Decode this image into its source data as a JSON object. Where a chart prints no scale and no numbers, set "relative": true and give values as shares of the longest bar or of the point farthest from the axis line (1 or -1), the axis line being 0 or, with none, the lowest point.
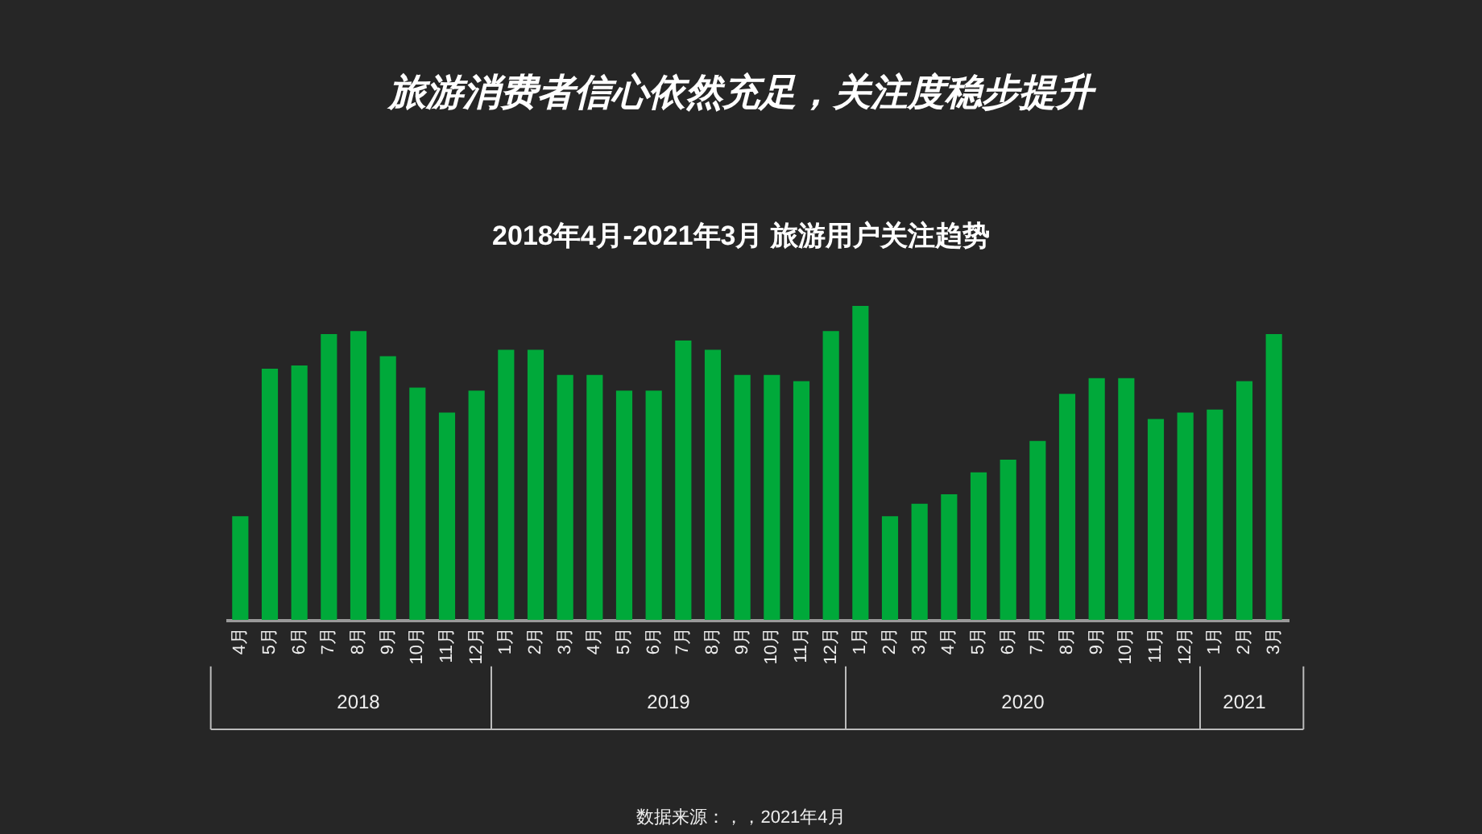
{
  "chart_data": {
    "type": "bar",
    "title": "旅游消费者信心依然充足，关注度稳步提升",
    "subtitle": "2018年4月-2021年3月 旅游用户关注趋势",
    "relative": true,
    "color": "#00a93a",
    "categories": [
      "4月",
      "5月",
      "6月",
      "7月",
      "8月",
      "9月",
      "10月",
      "11月",
      "12月",
      "1月",
      "2月",
      "3月",
      "4月",
      "5月",
      "6月",
      "7月",
      "8月",
      "9月",
      "10月",
      "11月",
      "12月",
      "1月",
      "2月",
      "3月",
      "4月",
      "5月",
      "6月",
      "7月",
      "8月",
      "9月",
      "10月",
      "11月",
      "12月",
      "1月",
      "2月",
      "3月"
    ],
    "values": [
      0.33,
      0.8,
      0.81,
      0.91,
      0.92,
      0.84,
      0.74,
      0.66,
      0.73,
      0.86,
      0.86,
      0.78,
      0.78,
      0.73,
      0.73,
      0.89,
      0.86,
      0.78,
      0.78,
      0.76,
      0.92,
      1.0,
      0.33,
      0.37,
      0.4,
      0.47,
      0.51,
      0.57,
      0.72,
      0.77,
      0.77,
      0.64,
      0.66,
      0.67,
      0.76,
      0.91
    ],
    "annotations": [
      "2018",
      "2019",
      "2020",
      "2021",
      "数据来源：，，2021年4月"
    ]
  }
}
